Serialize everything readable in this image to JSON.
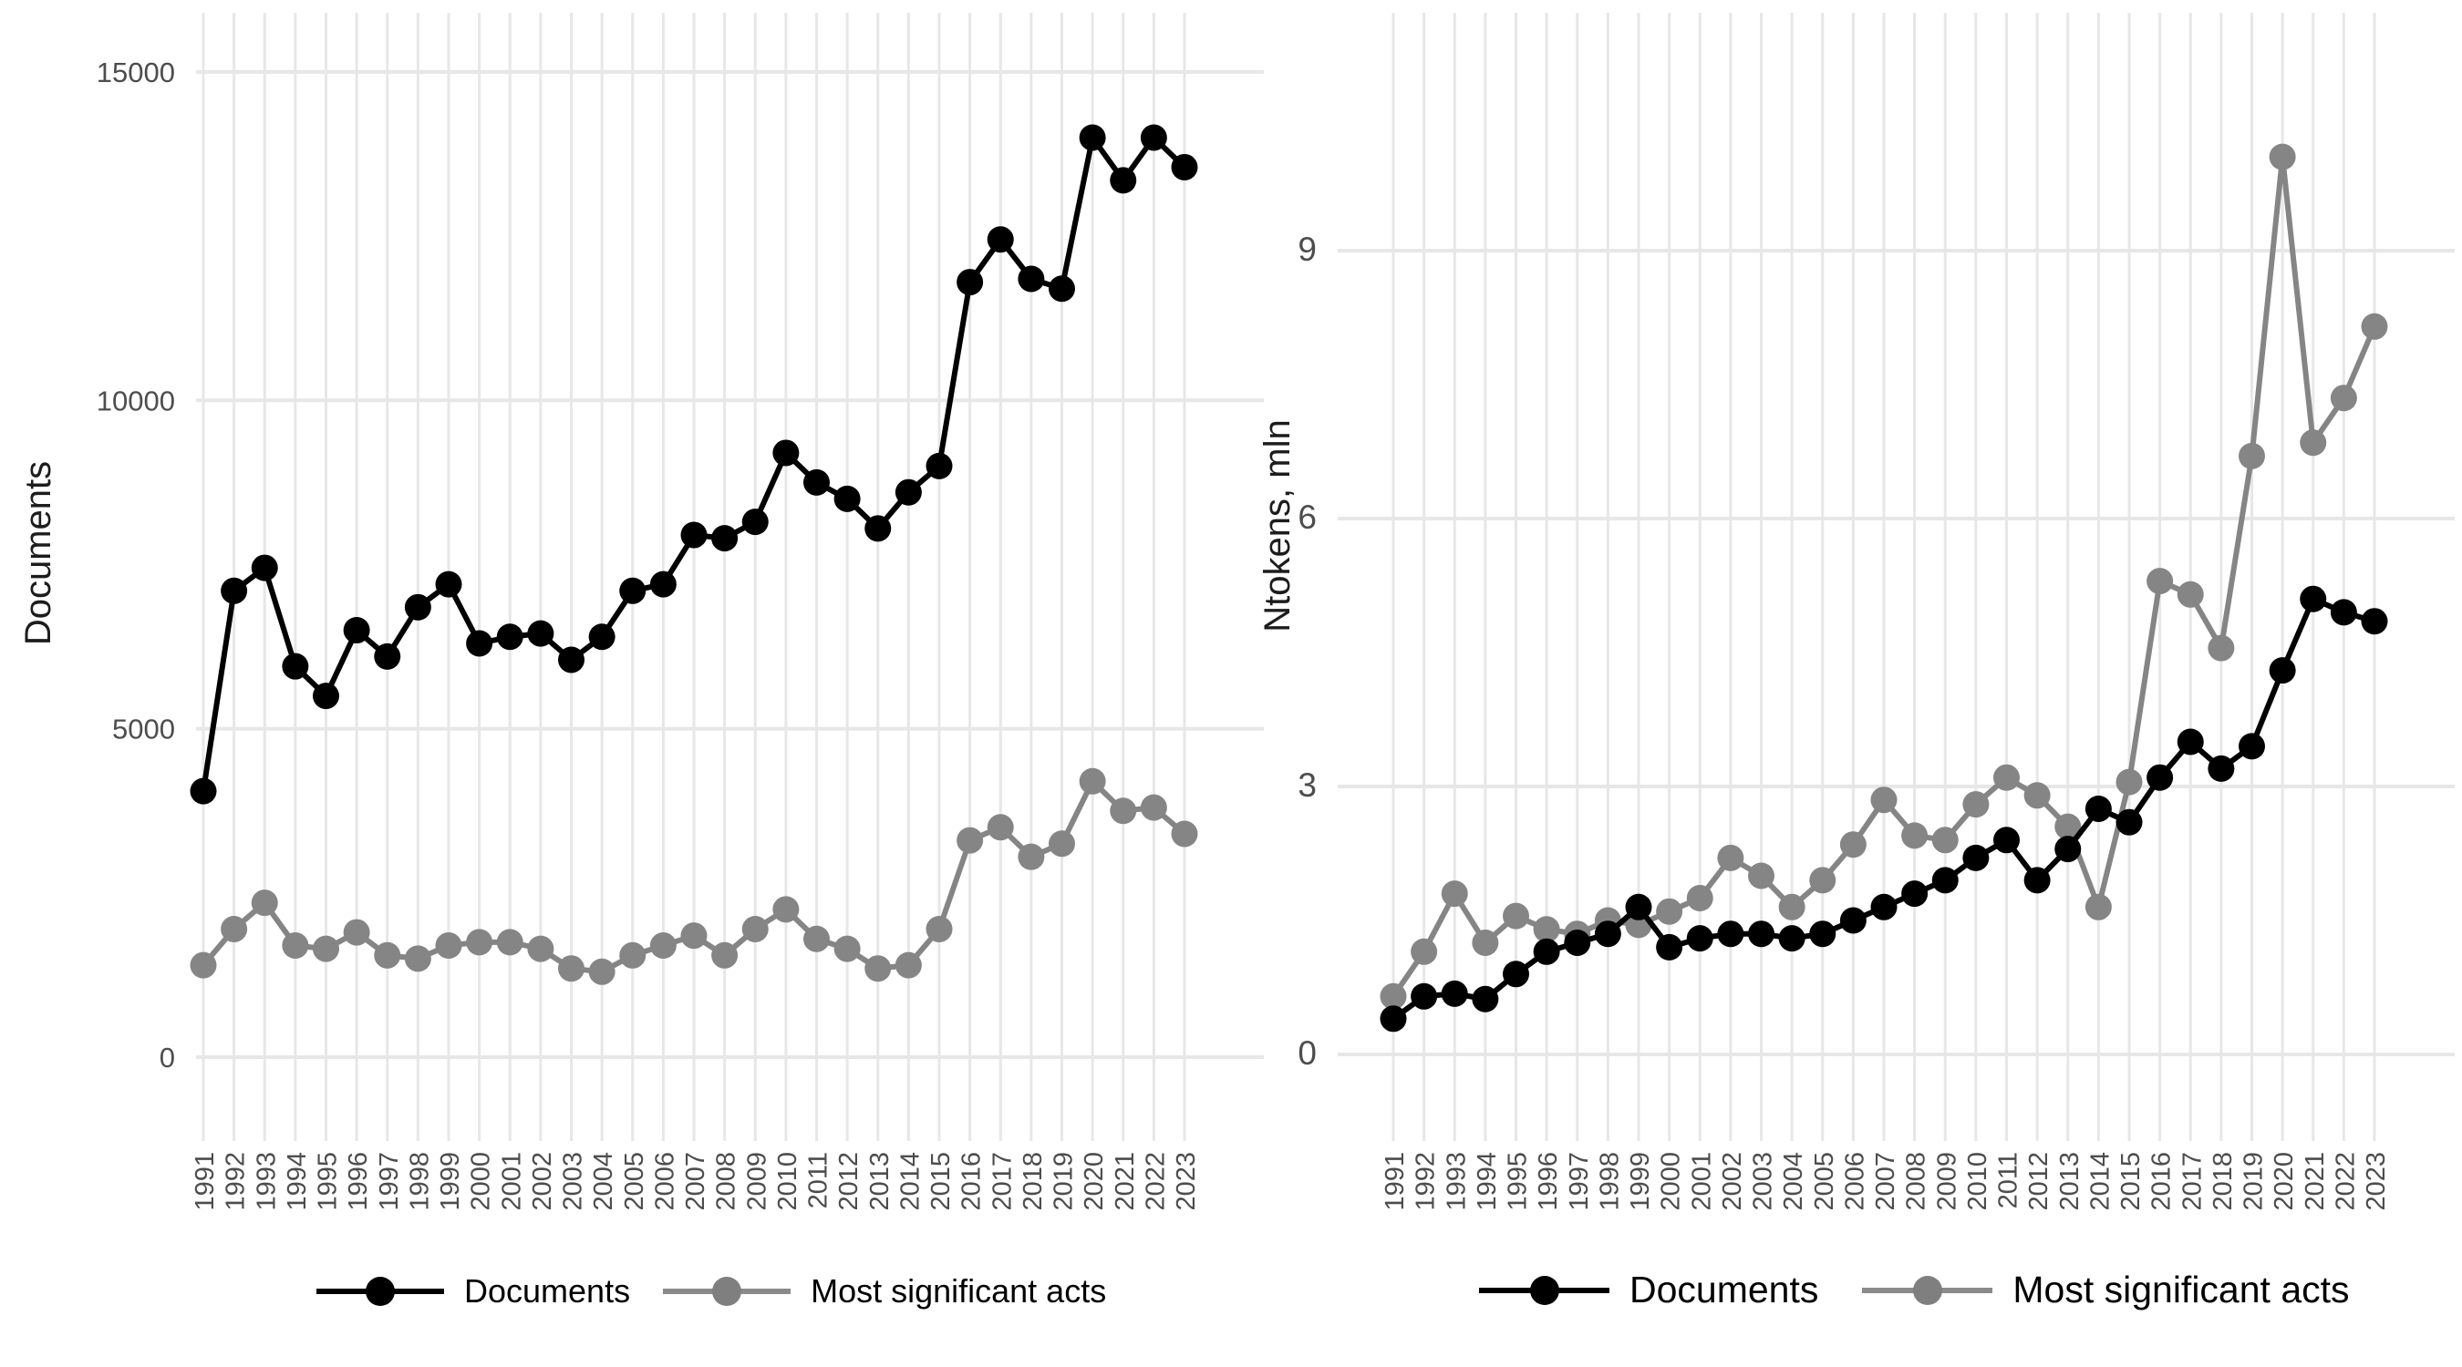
{
  "chart_data": [
    {
      "type": "line",
      "panel": "left",
      "title": "",
      "xlabel": "",
      "ylabel": "Documents",
      "x": [
        1991,
        1992,
        1993,
        1994,
        1995,
        1996,
        1997,
        1998,
        1999,
        2000,
        2001,
        2002,
        2003,
        2004,
        2005,
        2006,
        2007,
        2008,
        2009,
        2010,
        2011,
        2012,
        2013,
        2014,
        2015,
        2016,
        2017,
        2018,
        2019,
        2020,
        2021,
        2022,
        2023
      ],
      "yticks": [
        0,
        5000,
        10000,
        15000
      ],
      "ytick_labels": [
        "0",
        "5000",
        "10000",
        "15000"
      ],
      "ylim": [
        0,
        15900
      ],
      "grid": "on",
      "legend_position": "bottom",
      "series": [
        {
          "name": "Documents",
          "color": "#000000",
          "values": [
            4050,
            7100,
            7450,
            5950,
            5500,
            6500,
            6100,
            6850,
            7200,
            6300,
            6400,
            6450,
            6050,
            6400,
            7100,
            7200,
            7950,
            7900,
            8150,
            9200,
            8750,
            8500,
            8050,
            8600,
            9000,
            11800,
            12450,
            11850,
            11700,
            14000,
            13350,
            14000,
            13550
          ]
        },
        {
          "name": "Most significant acts",
          "color": "#858585",
          "values": [
            1400,
            1950,
            2350,
            1700,
            1650,
            1900,
            1550,
            1500,
            1700,
            1750,
            1750,
            1650,
            1350,
            1300,
            1550,
            1700,
            1850,
            1550,
            1950,
            2250,
            1800,
            1650,
            1350,
            1400,
            1950,
            3300,
            3500,
            3050,
            3250,
            4200,
            3750,
            3800,
            3400
          ]
        }
      ]
    },
    {
      "type": "line",
      "panel": "right",
      "title": "",
      "xlabel": "",
      "ylabel": "Ntokens, mln",
      "x": [
        1991,
        1992,
        1993,
        1994,
        1995,
        1996,
        1997,
        1998,
        1999,
        2000,
        2001,
        2002,
        2003,
        2004,
        2005,
        2006,
        2007,
        2008,
        2009,
        2010,
        2011,
        2012,
        2013,
        2014,
        2015,
        2016,
        2017,
        2018,
        2019,
        2020,
        2021,
        2022,
        2023
      ],
      "yticks": [
        0,
        3,
        6,
        9
      ],
      "ytick_labels": [
        "0",
        "3",
        "6",
        "9"
      ],
      "ylim": [
        0,
        11.7
      ],
      "grid": "on",
      "legend_position": "bottom",
      "series": [
        {
          "name": "Documents",
          "color": "#000000",
          "values": [
            0.4,
            0.65,
            0.68,
            0.62,
            0.9,
            1.15,
            1.25,
            1.35,
            1.65,
            1.2,
            1.3,
            1.35,
            1.35,
            1.3,
            1.35,
            1.5,
            1.65,
            1.8,
            1.95,
            2.2,
            2.4,
            1.95,
            2.3,
            2.75,
            2.6,
            3.1,
            3.5,
            3.2,
            3.45,
            4.3,
            5.1,
            4.95,
            4.85
          ]
        },
        {
          "name": "Most significant acts",
          "color": "#858585",
          "values": [
            0.65,
            1.15,
            1.8,
            1.25,
            1.55,
            1.4,
            1.35,
            1.5,
            1.45,
            1.6,
            1.75,
            2.2,
            2.0,
            1.65,
            1.95,
            2.35,
            2.85,
            2.45,
            2.4,
            2.8,
            3.1,
            2.9,
            2.55,
            1.65,
            3.05,
            5.3,
            5.15,
            4.55,
            6.7,
            10.05,
            6.85,
            7.35,
            8.15
          ]
        }
      ]
    }
  ]
}
